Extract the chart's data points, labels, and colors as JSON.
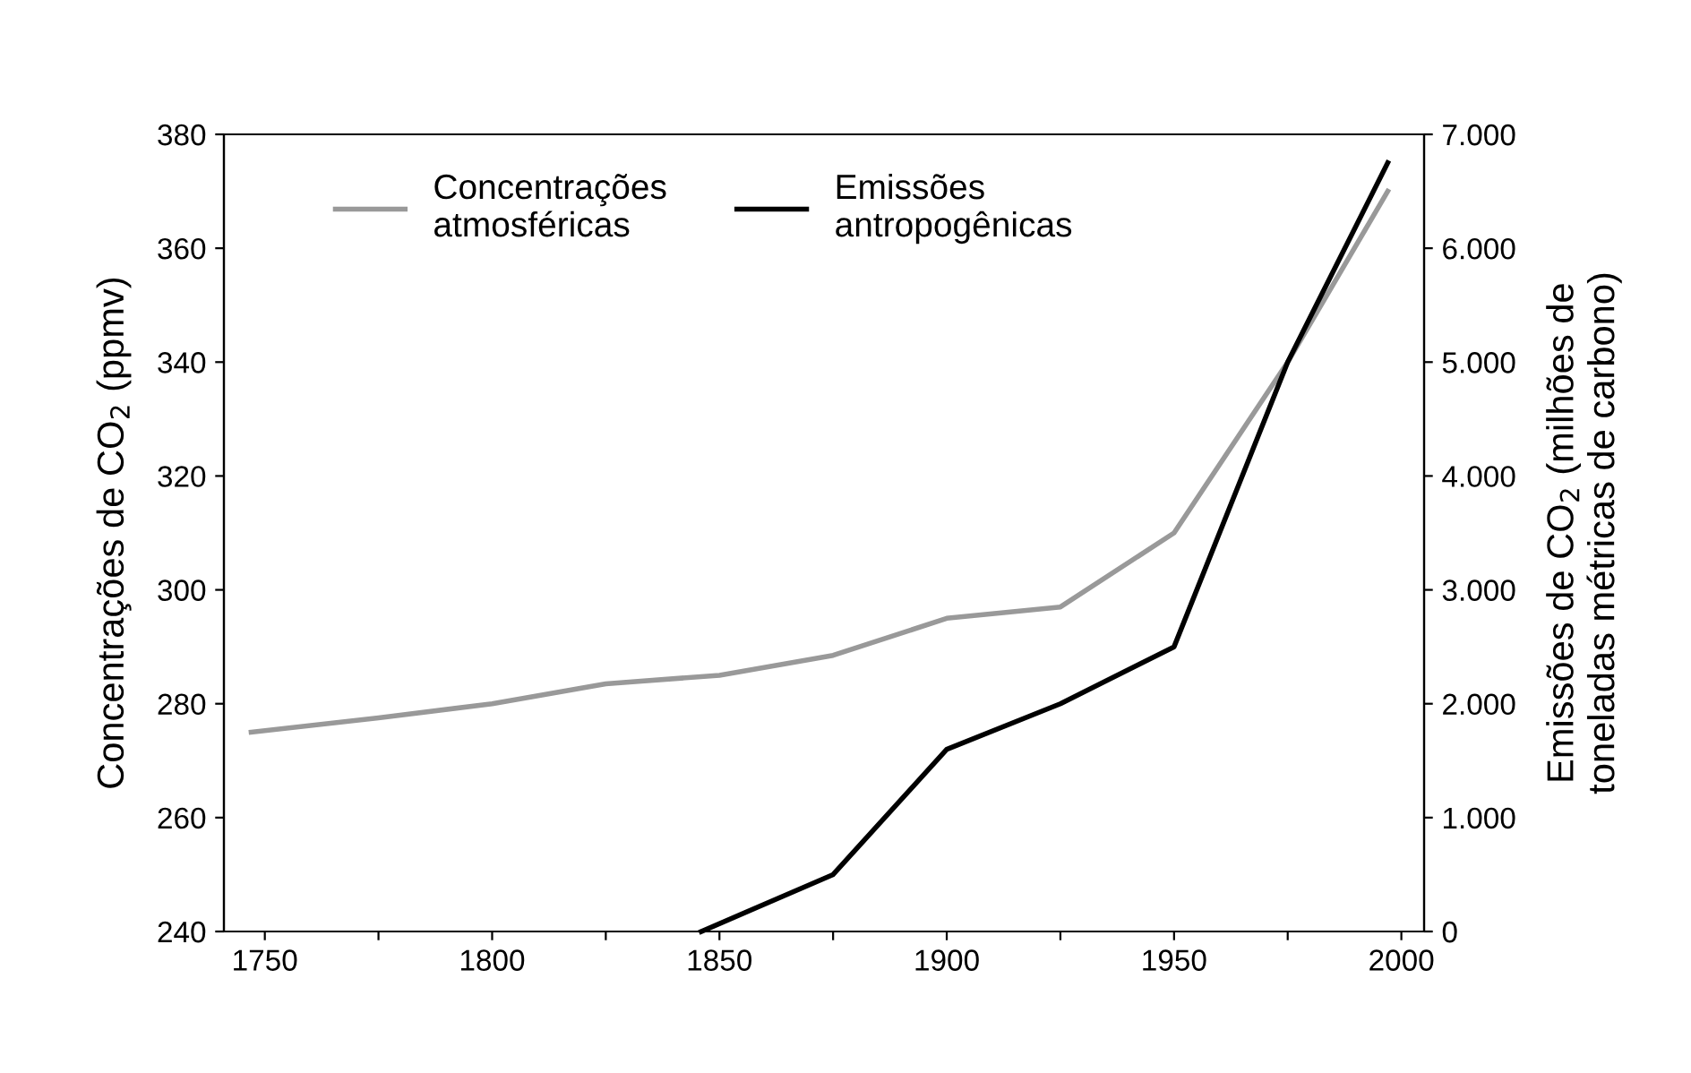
{
  "chart_data": {
    "type": "line",
    "ylabel": "Concentrações de CO$_{2}$ (ppmv)",
    "y2label": "Emissões de CO$_{2}$ (milhões de\ntoneladas métricas de carbono)",
    "xlim": [
      1741,
      2005
    ],
    "xticks": [
      1750,
      {
        "value": 1775,
        "label": null
      },
      1800,
      {
        "value": 1825,
        "label": null
      },
      1850,
      {
        "value": 1875,
        "label": null
      },
      1900,
      {
        "value": 1925,
        "label": null
      },
      1950,
      {
        "value": 1975,
        "label": null
      },
      2000
    ],
    "ylim": [
      240,
      380
    ],
    "yticks": [
      240,
      260,
      280,
      300,
      320,
      340,
      360,
      380
    ],
    "y2lim": [
      0,
      7000
    ],
    "y2ticks": [
      0,
      {
        "value": 1000,
        "label": "1.000"
      },
      {
        "value": 2000,
        "label": "2.000"
      },
      {
        "value": 3000,
        "label": "3.000"
      },
      {
        "value": 4000,
        "label": "4.000"
      },
      {
        "value": 5000,
        "label": "5.000"
      },
      {
        "value": 6000,
        "label": "6.000"
      },
      {
        "value": 7000,
        "label": "7.000"
      }
    ],
    "legend": "top",
    "grid": false,
    "series": [
      {
        "name": "Concentrações\natmosféricas",
        "color": "#999999",
        "x": [
          1747,
          1775,
          1800,
          1825,
          1850,
          1875,
          1900,
          1925,
          1950,
          1975,
          1997
        ],
        "values": [
          275,
          277.5,
          280,
          283.5,
          285,
          288.5,
          295,
          297,
          310,
          340,
          370
        ]
      },
      {
        "name": "Emissões\nantropogênicas",
        "color": "#000000",
        "axis": "y2",
        "x": [
          1846,
          1875,
          1900,
          1925,
          1950,
          1975,
          1997
        ],
        "values": [
          0,
          500,
          1600,
          2000,
          2500,
          5000,
          6750
        ]
      }
    ]
  }
}
